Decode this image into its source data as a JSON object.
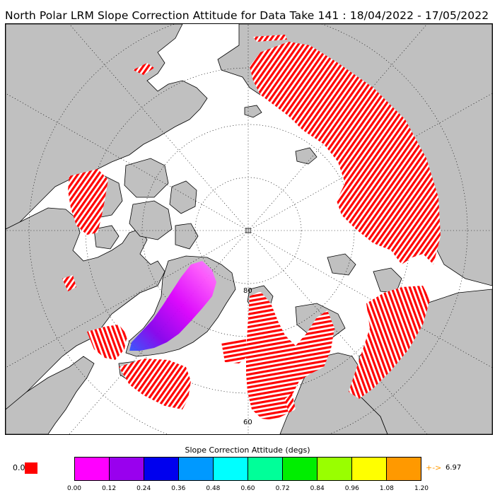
{
  "title": "North Polar LRM Slope Correction Attitude for Data Take 141 : 18/04/2022 - 17/05/2022",
  "map": {
    "projection": "north-polar-stereographic",
    "ocean_color": "#ffffff",
    "land_color": "#c0c0c0",
    "swath_color": "#ff0000",
    "latitude_labels": [
      "80",
      "60"
    ]
  },
  "legend": {
    "title": "Slope Correction Attitude (degs)",
    "zero_label": "0.0",
    "zero_color": "#ff0000",
    "colors": [
      "#ff00ff",
      "#9900ee",
      "#0000ee",
      "#0099ff",
      "#00ffff",
      "#00ff99",
      "#00ee00",
      "#99ff00",
      "#ffff00",
      "#ff9900"
    ],
    "ticks": [
      "0.00",
      "0.12",
      "0.24",
      "0.36",
      "0.48",
      "0.60",
      "0.72",
      "0.84",
      "0.96",
      "1.08",
      "1.20"
    ],
    "overflow_arrow": "+->",
    "overflow_value": "6.97",
    "overflow_color": "#ff9900"
  }
}
